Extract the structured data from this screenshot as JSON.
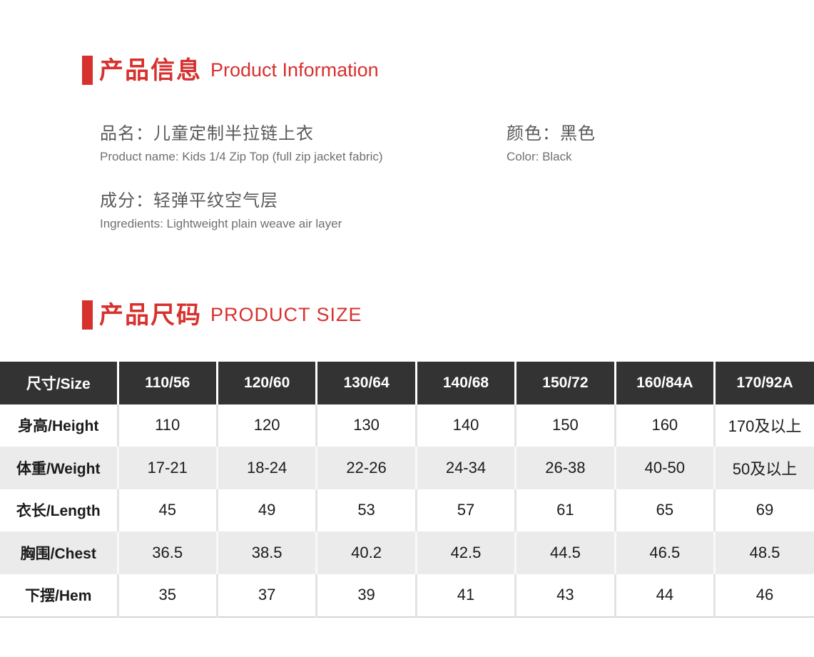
{
  "accent": "#d7312e",
  "sections": {
    "info": {
      "title_zh": "产品信息",
      "title_en": "Product Information",
      "fields": {
        "name": {
          "zh": "品名：儿童定制半拉链上衣",
          "en": "Product name: Kids 1/4 Zip Top (full zip jacket fabric)"
        },
        "color": {
          "zh": "颜色：黑色",
          "en": "Color: Black"
        },
        "ingredients": {
          "zh": "成分：轻弹平纹空气层",
          "en": "Ingredients: Lightweight plain weave air layer"
        }
      }
    },
    "size": {
      "title_zh": "产品尺码",
      "title_en": "PRODUCT SIZE"
    }
  },
  "size_table": {
    "columns": [
      "尺寸/Size",
      "110/56",
      "120/60",
      "130/64",
      "140/68",
      "150/72",
      "160/84A",
      "170/92A"
    ],
    "rows": [
      {
        "label": "身高/Height",
        "values": [
          "110",
          "120",
          "130",
          "140",
          "150",
          "160",
          "170及以上"
        ]
      },
      {
        "label": "体重/Weight",
        "values": [
          "17-21",
          "18-24",
          "22-26",
          "24-34",
          "26-38",
          "40-50",
          "50及以上"
        ]
      },
      {
        "label": "衣长/Length",
        "values": [
          "45",
          "49",
          "53",
          "57",
          "61",
          "65",
          "69"
        ]
      },
      {
        "label": "胸围/Chest",
        "values": [
          "36.5",
          "38.5",
          "40.2",
          "42.5",
          "44.5",
          "46.5",
          "48.5"
        ]
      },
      {
        "label": "下摆/Hem",
        "values": [
          "35",
          "37",
          "39",
          "41",
          "43",
          "44",
          "46"
        ]
      }
    ],
    "colors": {
      "header_bg": "#333333",
      "header_text": "#ffffff",
      "alt_row_bg": "#ebebeb",
      "body_text": "#1b1b1b"
    }
  }
}
